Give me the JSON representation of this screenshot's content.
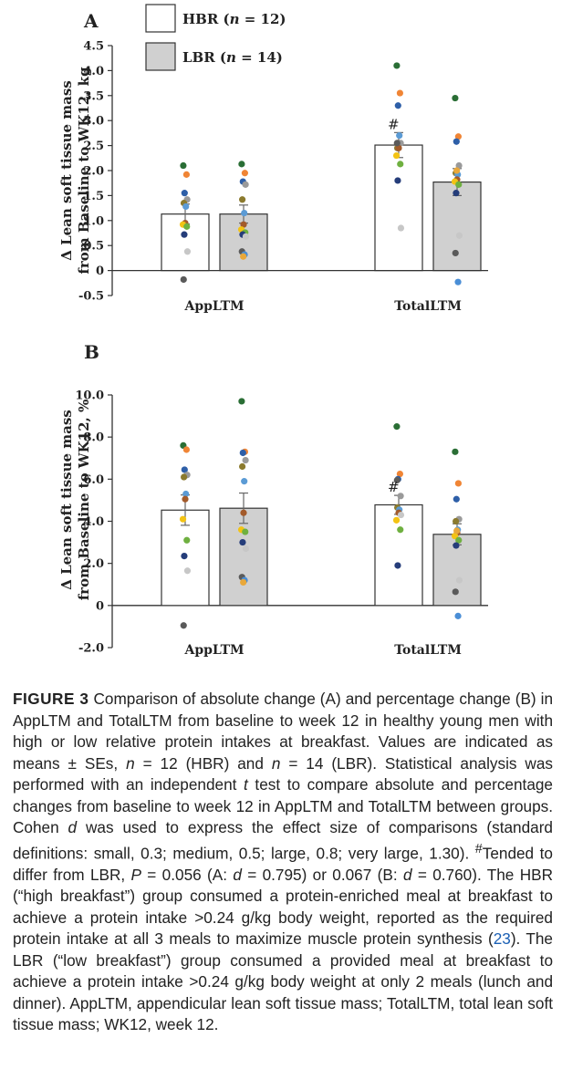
{
  "legend": {
    "hbr_label": "HBR (n = 12)",
    "lbr_label": "LBR (n = 14)",
    "hbr_fill": "#ffffff",
    "lbr_fill": "#d0d0d0"
  },
  "chart_data": [
    {
      "type": "bar",
      "panel": "A",
      "ylabel": [
        "Δ Lean soft tissue mass",
        "from Baseline to WK12, kg"
      ],
      "ylim": [
        -0.5,
        4.5
      ],
      "yticks": [
        "-0.5",
        "0",
        "0.5",
        "1.0",
        "1.5",
        "2.0",
        "2.5",
        "3.0",
        "3.5",
        "4.0",
        "4.5"
      ],
      "categories": [
        "AppLTM",
        "TotalLTM"
      ],
      "series": [
        {
          "name": "HBR (n = 12)",
          "values": [
            1.13,
            2.51
          ],
          "se": [
            0.2,
            0.25
          ]
        },
        {
          "name": "LBR (n = 14)",
          "values": [
            1.13,
            1.77
          ],
          "se": [
            0.18,
            0.27
          ]
        }
      ],
      "annotations": [
        {
          "text": "#",
          "category": "TotalLTM",
          "series": "HBR (n = 12)"
        }
      ],
      "individual_points": [
        {
          "category": "AppLTM",
          "series": "HBR (n = 12)",
          "values": [
            2.1,
            1.92,
            1.55,
            1.42,
            1.35,
            1.28,
            0.95,
            0.92,
            0.88,
            0.72,
            0.38,
            -0.18
          ]
        },
        {
          "category": "AppLTM",
          "series": "LBR (n = 14)",
          "values": [
            2.13,
            1.95,
            1.78,
            1.72,
            1.42,
            1.15,
            0.92,
            0.82,
            0.76,
            0.72,
            0.68,
            0.38,
            0.32,
            0.28
          ]
        },
        {
          "category": "TotalLTM",
          "series": "HBR (n = 12)",
          "values": [
            4.1,
            3.55,
            3.3,
            2.55,
            2.45,
            2.7,
            2.45,
            2.3,
            2.13,
            1.8,
            0.85,
            2.55
          ]
        },
        {
          "category": "TotalLTM",
          "series": "LBR (n = 14)",
          "values": [
            3.45,
            2.68,
            2.58,
            2.1,
            1.95,
            1.92,
            1.82,
            1.78,
            1.72,
            1.55,
            0.7,
            0.35,
            -0.23,
            2.0
          ]
        }
      ]
    },
    {
      "type": "bar",
      "panel": "B",
      "ylabel": [
        "Δ Lean soft tissue mass",
        "from Baseline to WK12, %"
      ],
      "ylim": [
        -2.0,
        10.0
      ],
      "yticks": [
        "-2.0",
        "0",
        "2.0",
        "4.0",
        "6.0",
        "8.0",
        "10.0"
      ],
      "categories": [
        "AppLTM",
        "TotalLTM"
      ],
      "series": [
        {
          "name": "HBR (n = 12)",
          "values": [
            4.53,
            4.78
          ],
          "se": [
            0.72,
            0.45
          ]
        },
        {
          "name": "LBR (n = 14)",
          "values": [
            4.62,
            3.38
          ],
          "se": [
            0.72,
            0.5
          ]
        }
      ],
      "annotations": [
        {
          "text": "#",
          "category": "TotalLTM",
          "series": "HBR (n = 12)"
        }
      ],
      "individual_points": [
        {
          "category": "AppLTM",
          "series": "HBR (n = 12)",
          "values": [
            7.6,
            7.4,
            6.45,
            6.2,
            6.1,
            5.3,
            5.05,
            4.1,
            3.1,
            2.35,
            1.65,
            -0.95
          ]
        },
        {
          "category": "AppLTM",
          "series": "LBR (n = 14)",
          "values": [
            9.7,
            7.3,
            7.25,
            6.9,
            6.6,
            5.9,
            4.4,
            3.6,
            3.5,
            3.0,
            2.7,
            1.35,
            1.2,
            1.1
          ]
        },
        {
          "category": "TotalLTM",
          "series": "HBR (n = 12)",
          "values": [
            8.5,
            6.25,
            6.0,
            5.2,
            4.65,
            4.55,
            4.4,
            4.05,
            3.6,
            1.9,
            4.3,
            5.95
          ]
        },
        {
          "category": "TotalLTM",
          "series": "LBR (n = 14)",
          "values": [
            7.3,
            5.8,
            5.05,
            4.1,
            4.0,
            3.6,
            3.45,
            3.3,
            3.1,
            2.85,
            1.2,
            0.65,
            -0.5,
            3.55
          ]
        }
      ]
    }
  ],
  "point_colors": [
    "#2a6e35",
    "#f08535",
    "#2e5fa8",
    "#9a9a9a",
    "#8b7a2e",
    "#5b9bd5",
    "#a35a2a",
    "#f3c314",
    "#6fb040",
    "#253d7a",
    "#c7c7c7",
    "#5a5a5a",
    "#4a8ed6",
    "#e9a83a"
  ],
  "caption": {
    "label": "FIGURE 3",
    "text_1": " Comparison of absolute change (A) and percentage change (B) in AppLTM and TotalLTM from baseline to week 12 in healthy young men with high or low relative protein intakes at breakfast. Values are indicated as means ± SEs, ",
    "n1": "n",
    "text_2": " = 12 (HBR) and ",
    "n2": "n",
    "text_3": " = 14 (LBR). Statistical analysis was performed with an independent ",
    "t": "t",
    "text_4": " test to compare absolute and percentage changes from baseline to week 12 in AppLTM and TotalLTM between groups. Cohen ",
    "d1": "d",
    "text_5": " was used to express the effect size of comparisons (standard definitions: small, 0.3; medium, 0.5; large, 0.8; very large, 1.30). ",
    "hash": "#",
    "text_6": "Tended to differ from LBR, ",
    "p": "P",
    "text_7": " = 0.056 (A: ",
    "d2": "d",
    "text_8": " = 0.795) or 0.067 (B: ",
    "d3": "d",
    "text_9": " = 0.760). The HBR (“high breakfast”) group consumed a protein-enriched meal at breakfast to achieve a protein intake >0.24 g/kg body weight, reported as the required protein intake at all 3 meals to maximize muscle protein synthesis (",
    "ref": "23",
    "text_10": "). The LBR (“low breakfast”) group consumed a provided meal at breakfast to achieve a protein intake >0.24 g/kg body weight at only 2 meals (lunch and dinner). AppLTM, appendicular lean soft tissue mass; TotalLTM, total lean soft tissue mass; WK12, week 12."
  }
}
